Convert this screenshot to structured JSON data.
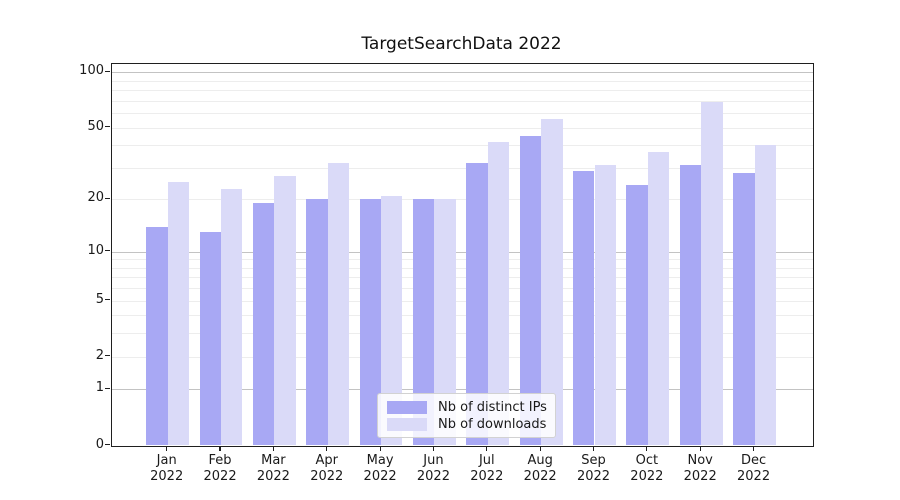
{
  "title": "TargetSearchData 2022",
  "colors": {
    "ips_bar": "#a8a8f4",
    "downloads_bar": "#dadaf8",
    "grid_major": "#c3c3c3",
    "grid_minor": "#ededed",
    "axis": "#1f1f1f"
  },
  "legend": {
    "items": [
      {
        "label": "Nb of distinct IPs",
        "series": "ips"
      },
      {
        "label": "Nb of downloads",
        "series": "downloads"
      }
    ]
  },
  "chart_data": {
    "type": "bar",
    "title": "TargetSearchData 2022",
    "categories": [
      "Jan",
      "Feb",
      "Mar",
      "Apr",
      "May",
      "Jun",
      "Jul",
      "Aug",
      "Sep",
      "Oct",
      "Nov",
      "Dec"
    ],
    "category_year": "2022",
    "series": [
      {
        "name": "Nb of distinct IPs",
        "values": [
          14,
          13,
          19,
          20,
          20,
          20,
          32,
          45,
          29,
          24,
          31,
          28
        ]
      },
      {
        "name": "Nb of downloads",
        "values": [
          25,
          23,
          27,
          32,
          21,
          20,
          42,
          56,
          31,
          37,
          69,
          40
        ]
      }
    ],
    "xlabel": "",
    "ylabel": "",
    "yscale": "log1p",
    "ylim": [
      0,
      112
    ],
    "y_ticks": [
      0,
      1,
      2,
      5,
      10,
      20,
      50,
      100
    ],
    "grid": {
      "on": true,
      "major_values": [
        1,
        10,
        100
      ],
      "minor_values": [
        2,
        3,
        4,
        5,
        6,
        7,
        8,
        9,
        20,
        30,
        40,
        50,
        60,
        70,
        80,
        90
      ]
    },
    "legend_position": "lower center"
  }
}
